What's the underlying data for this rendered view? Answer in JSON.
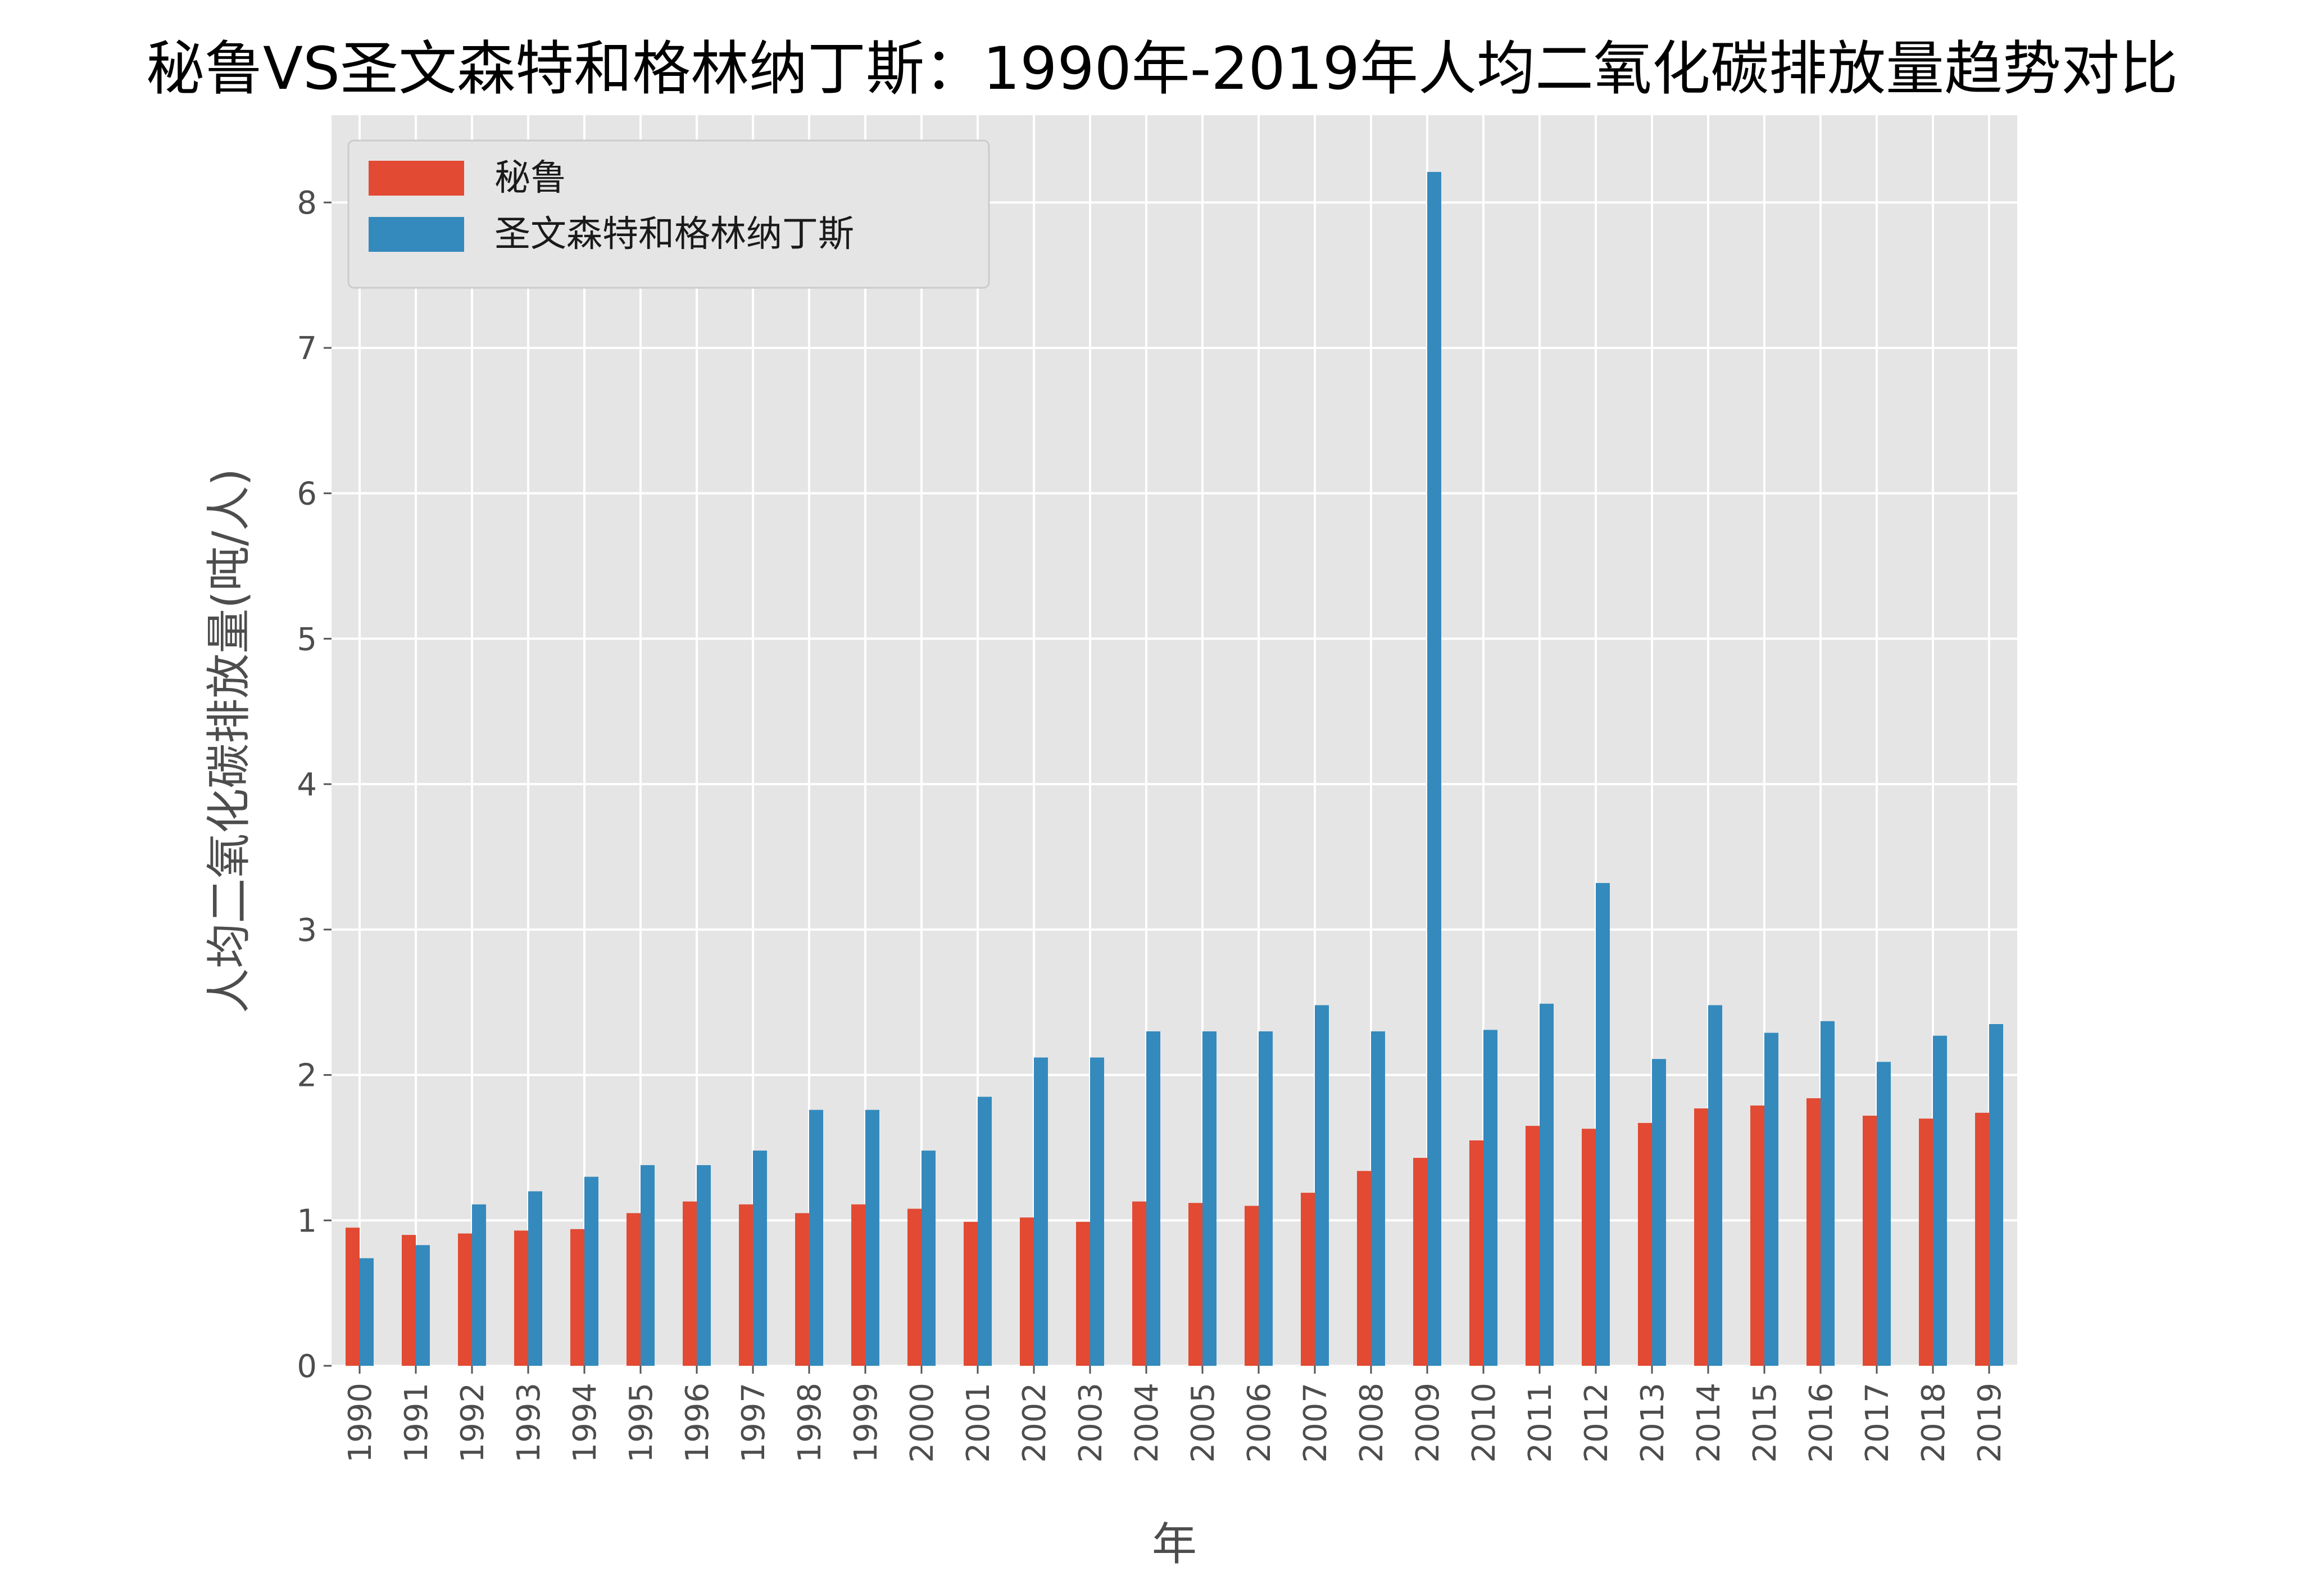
{
  "chart_data": {
    "type": "bar",
    "title": "秘鲁VS圣文森特和格林纳丁斯：1990年-2019年人均二氧化碳排放量趋势对比",
    "xlabel": "年",
    "ylabel": "人均二氧化碳排放量(吨/人)",
    "ylim": [
      0,
      8.6
    ],
    "yticks": [
      0,
      1,
      2,
      3,
      4,
      5,
      6,
      7,
      8
    ],
    "grid": true,
    "legend_position": "top-left",
    "categories": [
      "1990",
      "1991",
      "1992",
      "1993",
      "1994",
      "1995",
      "1996",
      "1997",
      "1998",
      "1999",
      "2000",
      "2001",
      "2002",
      "2003",
      "2004",
      "2005",
      "2006",
      "2007",
      "2008",
      "2009",
      "2010",
      "2011",
      "2012",
      "2013",
      "2014",
      "2015",
      "2016",
      "2017",
      "2018",
      "2019"
    ],
    "series": [
      {
        "name": "秘鲁",
        "color": "#e24a33",
        "values": [
          0.95,
          0.9,
          0.91,
          0.93,
          0.94,
          1.05,
          1.13,
          1.11,
          1.05,
          1.11,
          1.08,
          0.99,
          1.02,
          0.99,
          1.13,
          1.12,
          1.1,
          1.19,
          1.34,
          1.43,
          1.55,
          1.65,
          1.63,
          1.67,
          1.77,
          1.79,
          1.84,
          1.72,
          1.7,
          1.74
        ]
      },
      {
        "name": "圣文森特和格林纳丁斯",
        "color": "#348abd",
        "values": [
          0.74,
          0.83,
          1.11,
          1.2,
          1.3,
          1.38,
          1.38,
          1.48,
          1.76,
          1.76,
          1.48,
          1.85,
          2.12,
          2.12,
          2.3,
          2.3,
          2.3,
          2.48,
          2.3,
          8.21,
          2.31,
          2.49,
          3.32,
          2.11,
          2.48,
          2.29,
          2.37,
          2.09,
          2.27,
          2.35
        ]
      }
    ]
  }
}
